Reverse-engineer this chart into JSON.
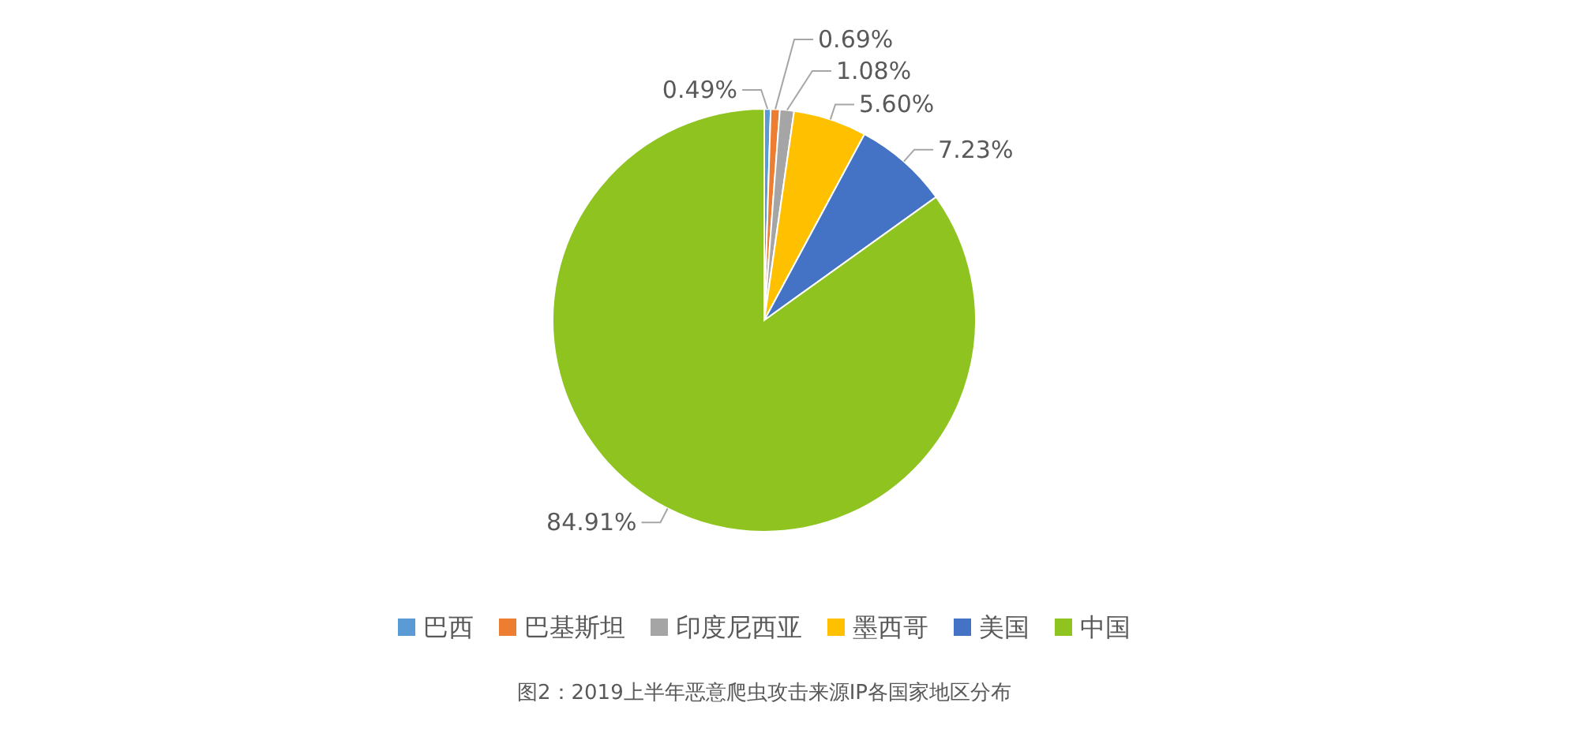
{
  "chart_data": {
    "type": "pie",
    "title": "图2：2019上半年恶意爬虫攻击来源IP各国家地区分布",
    "categories": [
      "巴西",
      "巴基斯坦",
      "印度尼西亚",
      "墨西哥",
      "美国",
      "中国"
    ],
    "values": [
      0.49,
      0.69,
      1.08,
      5.6,
      7.23,
      84.91
    ],
    "colors": [
      "#5b9bd5",
      "#ed7d31",
      "#a5a5a5",
      "#ffc000",
      "#4472c4",
      "#8fc31f"
    ],
    "value_labels": [
      "0.49%",
      "0.69%",
      "1.08%",
      "5.60%",
      "7.23%",
      "84.91%"
    ],
    "legend": "bottom"
  }
}
